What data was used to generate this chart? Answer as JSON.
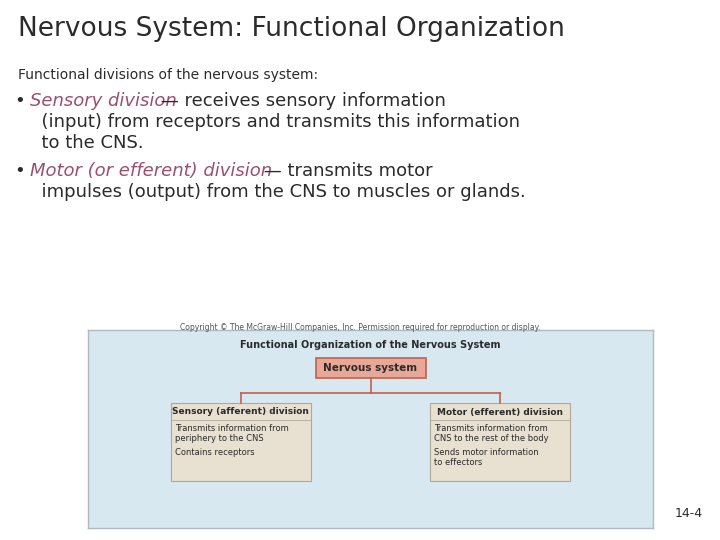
{
  "title": "Nervous System: Functional Organization",
  "title_color": "#2b2b2b",
  "title_fontsize": 19,
  "subtitle": "Functional divisions of the nervous system:",
  "subtitle_fontsize": 10,
  "subtitle_color": "#2b2b2b",
  "bg_color": "#ffffff",
  "bullet1_colored": "Sensory division",
  "bullet1_colored_color": "#9b4f6e",
  "bullet1_rest": " — receives sensory information",
  "bullet1_line2": "  (input) from receptors and transmits this information",
  "bullet1_line3": "  to the CNS.",
  "bullet2_colored": "Motor (or efferent) division",
  "bullet2_colored_color": "#9b4f6e",
  "bullet2_rest": " — transmits motor",
  "bullet2_line2": "  impulses (output) from the CNS to muscles or glands.",
  "bullet_fontsize": 13,
  "text_color": "#2b2b2b",
  "diagram_bg": "#d8e8f0",
  "diagram_border": "#b0b8c0",
  "diagram_title": "Functional Organization of the Nervous System",
  "copyright_text": "Copyright © The McGraw-Hill Companies, Inc. Permission required for reproduction or display.",
  "top_box_label": "Nervous system",
  "top_box_fill": "#e8a898",
  "top_box_border": "#c06050",
  "left_box_title": "Sensory (afferent) division",
  "left_box_line1": "Transmits information from",
  "left_box_line2": "periphery to the CNS",
  "left_box_line3": "Contains receptors",
  "right_box_title": "Motor (efferent) division",
  "right_box_line1": "Transmits information from",
  "right_box_line2": "CNS to the rest of the body",
  "right_box_line3": "Sends motor information",
  "right_box_line4": "to effectors",
  "sub_box_fill": "#e8e0d0",
  "sub_box_border": "#b0a898",
  "connector_color": "#c06050",
  "slide_num": "14-4"
}
